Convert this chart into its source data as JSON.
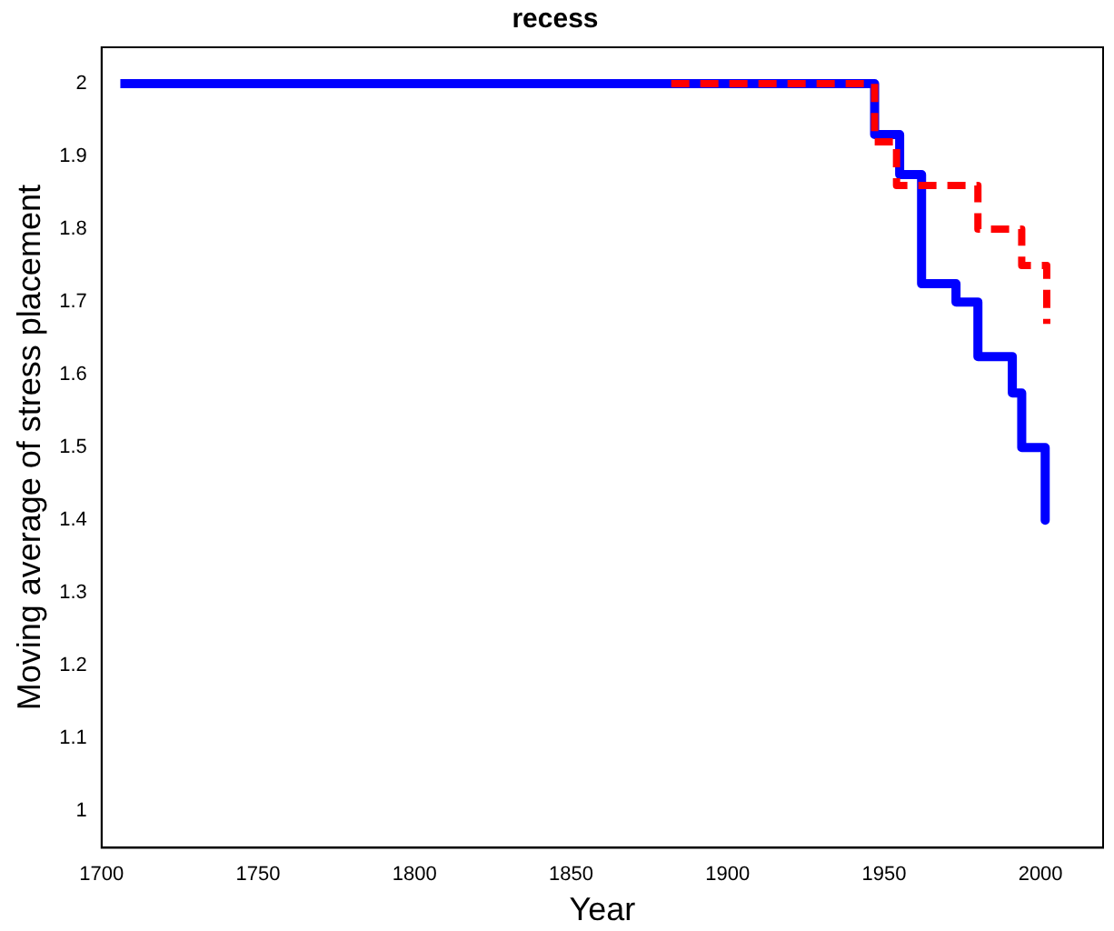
{
  "chart_data": {
    "type": "line",
    "title": "recess",
    "xlabel": "Year",
    "ylabel": "Moving average of stress placement",
    "xlim": [
      1700,
      2020
    ],
    "xticks": [
      1700,
      1750,
      1800,
      1850,
      1900,
      1950,
      2000
    ],
    "ylim": [
      0.95,
      2.05
    ],
    "yticks": [
      1,
      1.1,
      1.2,
      1.3,
      1.4,
      1.5,
      1.6,
      1.7,
      1.8,
      1.9,
      2
    ],
    "grid": false,
    "legend": false,
    "marker": "none",
    "series": [
      {
        "color": "#0000ff",
        "line_style": "solid",
        "x": [
          1706,
          1947,
          1947,
          1955,
          1955,
          1962,
          1962,
          1973,
          1973,
          1980,
          1980,
          1991,
          1991,
          1994,
          1994,
          2001.5,
          2001.5
        ],
        "values": [
          2,
          2,
          1.93,
          1.93,
          1.875,
          1.875,
          1.725,
          1.725,
          1.7,
          1.7,
          1.625,
          1.625,
          1.575,
          1.575,
          1.5,
          1.5,
          1.4
        ]
      },
      {
        "color": "#ff0000",
        "line_style": "dashed",
        "x": [
          1882,
          1947,
          1947,
          1954,
          1954,
          1980,
          1980,
          1994,
          1994,
          2002,
          2002
        ],
        "values": [
          2,
          2,
          1.92,
          1.92,
          1.86,
          1.86,
          1.8,
          1.8,
          1.75,
          1.75,
          1.67
        ]
      }
    ]
  }
}
